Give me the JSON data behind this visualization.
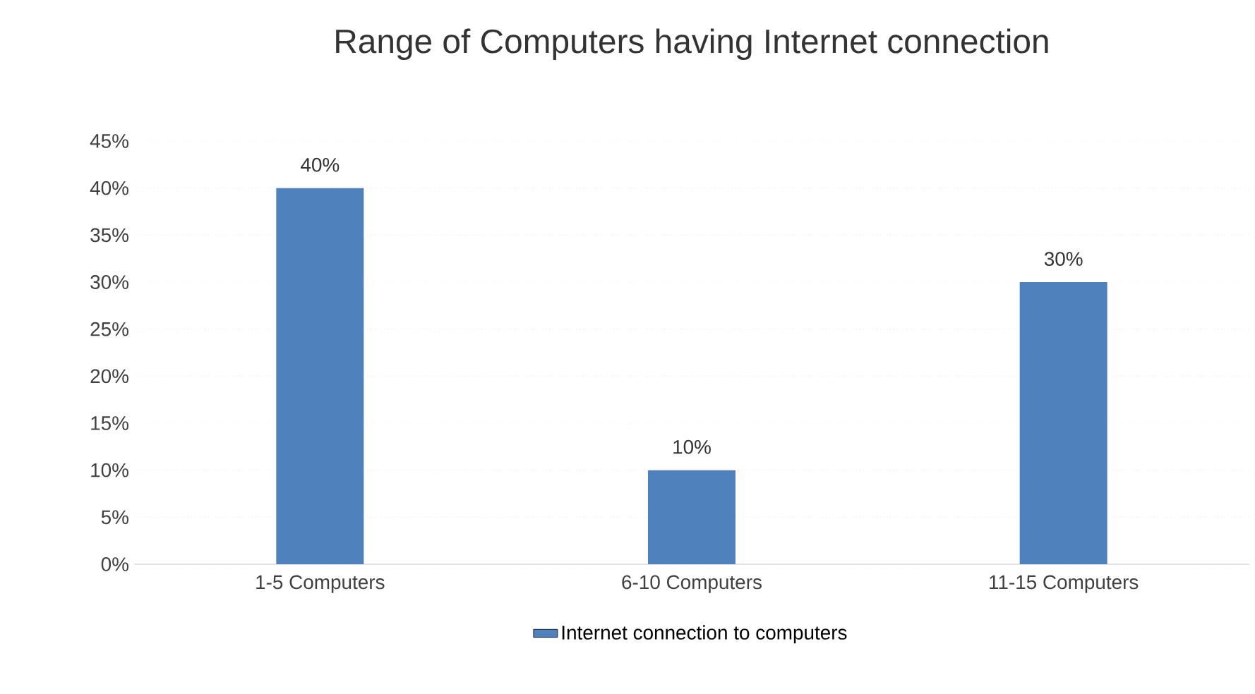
{
  "chart_data": {
    "type": "bar",
    "title": "Range of Computers having Internet connection",
    "categories": [
      "1-5 Computers",
      "6-10 Computers",
      "11-15 Computers"
    ],
    "series": [
      {
        "name": "Internet connection to computers",
        "color": "#4f81bd",
        "values": [
          40,
          10,
          30
        ],
        "value_labels": [
          "40%",
          "10%",
          "30%"
        ]
      }
    ],
    "ylim": [
      0,
      45
    ],
    "yticks": [
      {
        "value": 0,
        "label": "0%"
      },
      {
        "value": 5,
        "label": "5%"
      },
      {
        "value": 10,
        "label": "10%"
      },
      {
        "value": 15,
        "label": "15%"
      },
      {
        "value": 20,
        "label": "20%"
      },
      {
        "value": 25,
        "label": "25%"
      },
      {
        "value": 30,
        "label": "30%"
      },
      {
        "value": 35,
        "label": "35%"
      },
      {
        "value": 40,
        "label": "40%"
      },
      {
        "value": 45,
        "label": "45%"
      }
    ],
    "grid": "y",
    "legend": "bottom"
  }
}
